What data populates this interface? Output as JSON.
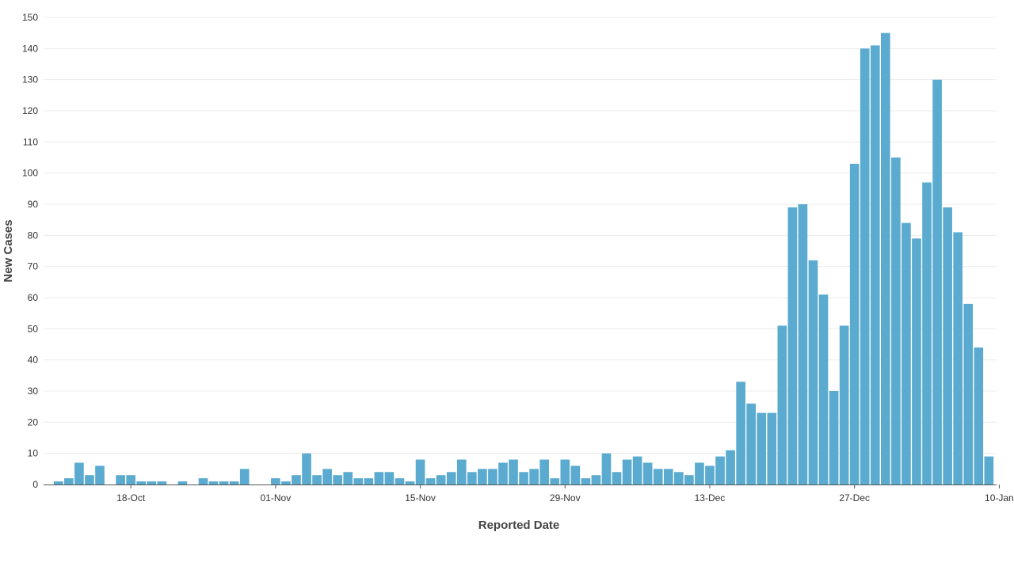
{
  "chart_data": {
    "type": "bar",
    "title": "",
    "xlabel": "Reported Date",
    "ylabel": "New Cases",
    "color": "#5aabcf",
    "ylim": [
      0,
      150
    ],
    "yticks": [
      0,
      10,
      20,
      30,
      40,
      50,
      60,
      70,
      80,
      90,
      100,
      110,
      120,
      130,
      140,
      150
    ],
    "grid": true,
    "legend": "none",
    "x_ticks": [
      {
        "day": 7,
        "label": "18-Oct"
      },
      {
        "day": 21,
        "label": "01-Nov"
      },
      {
        "day": 35,
        "label": "15-Nov"
      },
      {
        "day": 49,
        "label": "29-Nov"
      },
      {
        "day": 63,
        "label": "13-Dec"
      },
      {
        "day": 77,
        "label": "27-Dec"
      },
      {
        "day": 91,
        "label": "10-Jan"
      }
    ],
    "first_date": "12-Oct",
    "values": [
      1,
      2,
      7,
      3,
      6,
      0,
      3,
      3,
      1,
      1,
      1,
      0,
      1,
      0,
      2,
      1,
      1,
      1,
      5,
      0,
      0,
      2,
      1,
      3,
      10,
      3,
      5,
      3,
      4,
      2,
      2,
      4,
      4,
      2,
      1,
      8,
      2,
      3,
      4,
      8,
      4,
      5,
      5,
      7,
      8,
      4,
      5,
      8,
      2,
      8,
      6,
      2,
      3,
      10,
      4,
      8,
      9,
      7,
      5,
      5,
      4,
      3,
      7,
      6,
      9,
      11,
      33,
      26,
      23,
      23,
      51,
      89,
      90,
      72,
      61,
      30,
      51,
      103,
      140,
      141,
      145,
      105,
      84,
      79,
      97,
      130,
      89,
      81,
      58,
      44,
      9
    ]
  }
}
